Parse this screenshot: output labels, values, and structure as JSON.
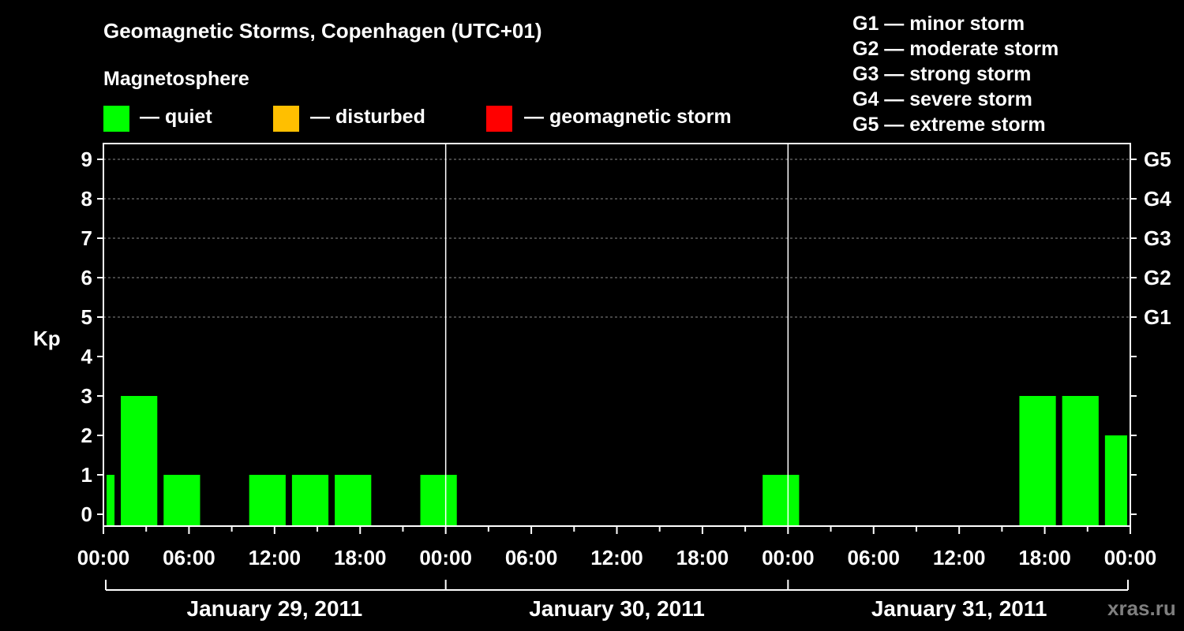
{
  "title": "Geomagnetic Storms, Copenhagen (UTC+01)",
  "magnetosphere": {
    "title": "Magnetosphere",
    "items": [
      {
        "label": "— quiet",
        "color": "#00ff00"
      },
      {
        "label": "— disturbed",
        "color": "#ffbf00"
      },
      {
        "label": "— geomagnetic storm",
        "color": "#ff0000"
      }
    ]
  },
  "storm_legend": [
    "G1 — minor storm",
    "G2 — moderate storm",
    "G3 — strong storm",
    "G4 — severe storm",
    "G5 — extreme storm"
  ],
  "watermark": "xras.ru",
  "chart_data": {
    "type": "bar",
    "ylabel": "Kp",
    "ylim": [
      -0.3,
      9.4
    ],
    "yticks": [
      "0",
      "1",
      "2",
      "3",
      "4",
      "5",
      "6",
      "7",
      "8",
      "9"
    ],
    "right_axis_labels": [
      {
        "value": 5,
        "label": "G1"
      },
      {
        "value": 6,
        "label": "G2"
      },
      {
        "value": 7,
        "label": "G3"
      },
      {
        "value": 8,
        "label": "G4"
      },
      {
        "value": 9,
        "label": "G5"
      }
    ],
    "grid_levels": [
      5,
      6,
      7,
      8,
      9
    ],
    "x_range_hours": [
      0,
      72
    ],
    "x_tick_labels": [
      "00:00",
      "06:00",
      "12:00",
      "18:00",
      "00:00",
      "06:00",
      "12:00",
      "18:00",
      "00:00",
      "06:00",
      "12:00",
      "18:00",
      "00:00"
    ],
    "days": [
      "January 29, 2011",
      "January 30, 2011",
      "January 31, 2011"
    ],
    "bars": [
      {
        "start": 0,
        "end": 1,
        "kp": 1,
        "status": "quiet"
      },
      {
        "start": 1,
        "end": 4,
        "kp": 3,
        "status": "quiet"
      },
      {
        "start": 4,
        "end": 7,
        "kp": 1,
        "status": "quiet"
      },
      {
        "start": 10,
        "end": 13,
        "kp": 1,
        "status": "quiet"
      },
      {
        "start": 13,
        "end": 16,
        "kp": 1,
        "status": "quiet"
      },
      {
        "start": 16,
        "end": 19,
        "kp": 1,
        "status": "quiet"
      },
      {
        "start": 22,
        "end": 25,
        "kp": 1,
        "status": "quiet"
      },
      {
        "start": 46,
        "end": 49,
        "kp": 1,
        "status": "quiet"
      },
      {
        "start": 64,
        "end": 67,
        "kp": 3,
        "status": "quiet"
      },
      {
        "start": 67,
        "end": 70,
        "kp": 3,
        "status": "quiet"
      },
      {
        "start": 70,
        "end": 72,
        "kp": 2,
        "status": "quiet"
      }
    ]
  }
}
